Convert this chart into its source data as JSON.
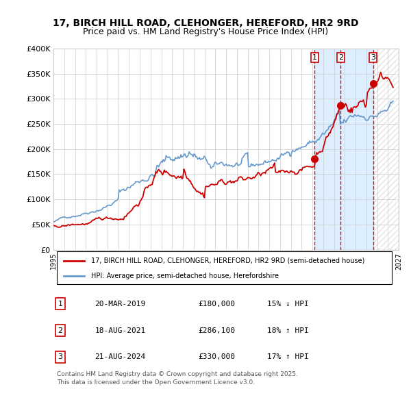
{
  "title": "17, BIRCH HILL ROAD, CLEHONGER, HEREFORD, HR2 9RD",
  "subtitle": "Price paid vs. HM Land Registry's House Price Index (HPI)",
  "legend_red": "17, BIRCH HILL ROAD, CLEHONGER, HEREFORD, HR2 9RD (semi-detached house)",
  "legend_blue": "HPI: Average price, semi-detached house, Herefordshire",
  "footer": "Contains HM Land Registry data © Crown copyright and database right 2025.\nThis data is licensed under the Open Government Licence v3.0.",
  "transactions": [
    {
      "num": 1,
      "date": "20-MAR-2019",
      "price": 180000,
      "pct": "15% ↓ HPI",
      "year": 2019.22
    },
    {
      "num": 2,
      "date": "18-AUG-2021",
      "price": 286100,
      "pct": "18% ↑ HPI",
      "year": 2021.63
    },
    {
      "num": 3,
      "date": "21-AUG-2024",
      "price": 330000,
      "pct": "17% ↑ HPI",
      "year": 2024.63
    }
  ],
  "ylabel_ticks": [
    "£0",
    "£50K",
    "£100K",
    "£150K",
    "£200K",
    "£250K",
    "£300K",
    "£350K",
    "£400K"
  ],
  "ylabel_values": [
    0,
    50000,
    100000,
    150000,
    200000,
    250000,
    300000,
    350000,
    400000
  ],
  "xmin": 1995.0,
  "xmax": 2027.0,
  "ymin": 0,
  "ymax": 400000,
  "bg_shade_start": 2019.22,
  "bg_shade_end": 2024.63,
  "red_color": "#cc0000",
  "blue_color": "#6699cc",
  "shade_color": "#ddeeff"
}
